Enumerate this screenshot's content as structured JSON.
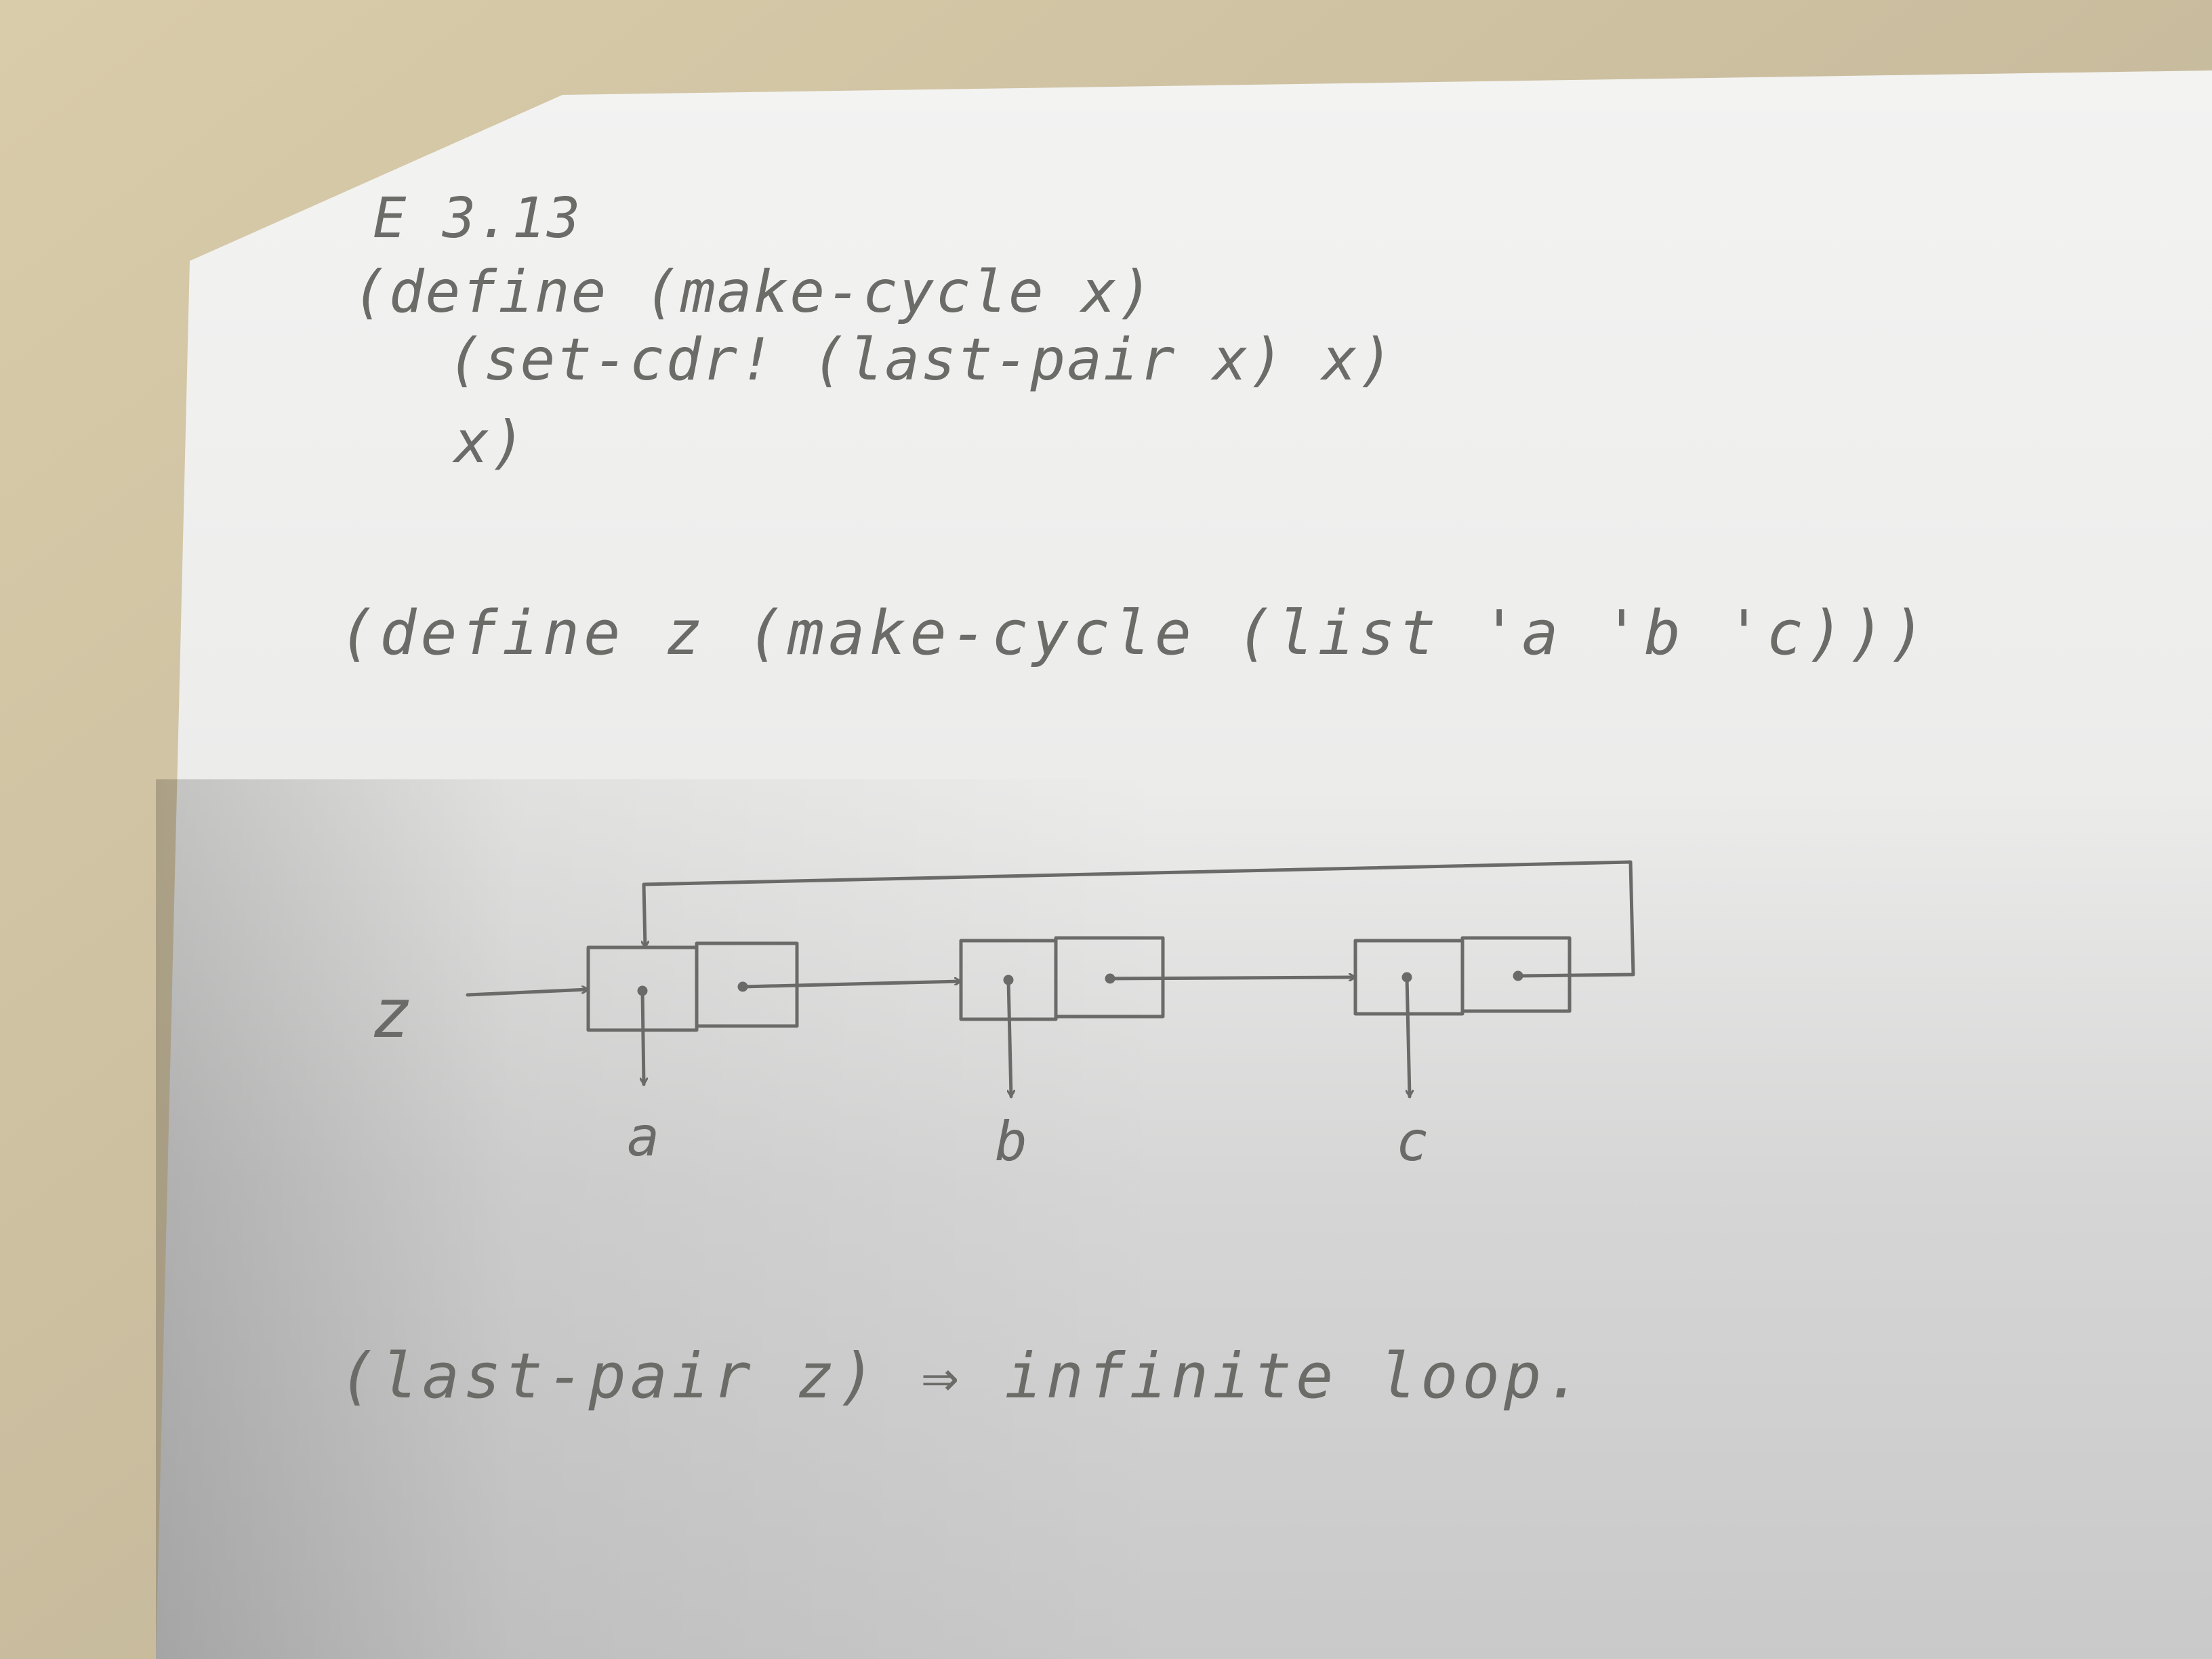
{
  "heading": "E 3.13",
  "code": [
    "(define (make-cycle x)",
    "(set-cdr! (last-pair x) x)",
    "x)"
  ],
  "example": "(define z (make-cycle (list 'a 'b 'c)))",
  "diagram": {
    "pointer_label": "z",
    "cells": [
      "a",
      "b",
      "c"
    ]
  },
  "conclusion": "(last-pair z) ⇒ infinite loop."
}
